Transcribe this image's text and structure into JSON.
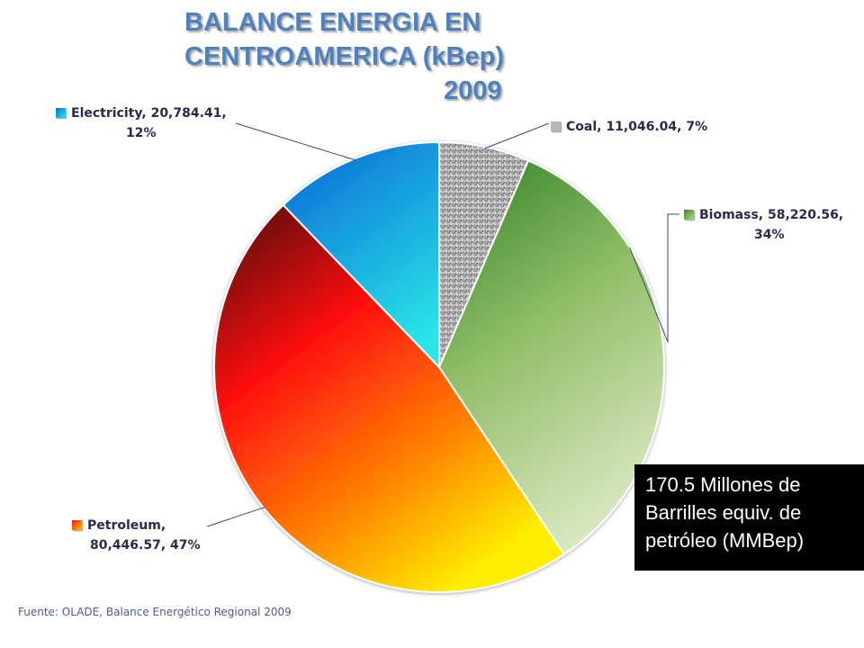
{
  "title": {
    "line1": "BALANCE ENERGIA EN",
    "line2": "CENTROAMERICA (kBep)",
    "line3": "2009"
  },
  "chart_data": {
    "type": "pie",
    "title": "BALANCE ENERGIA EN CENTROAMERICA (kBep) 2009",
    "slices": [
      {
        "name": "Coal",
        "value": 11046.04,
        "percent": 7,
        "label": "Coal, 11,046.04, 7%",
        "color": "#a6a6a6"
      },
      {
        "name": "Biomass",
        "value": 58220.56,
        "percent": 34,
        "label": "Biomass, 58,220.56, 34%",
        "color": "#77a83a"
      },
      {
        "name": "Petroleum",
        "value": 80446.57,
        "percent": 47,
        "label": "Petroleum, 80,446.57, 47%",
        "color": "#ff3a00"
      },
      {
        "name": "Electricity",
        "value": 20784.41,
        "percent": 12,
        "label": "Electricity, 20,784.41, 12%",
        "color": "#1a8fe8"
      }
    ],
    "start_angle": "12 o'clock",
    "direction": "clockwise"
  },
  "labels": {
    "electricity": {
      "line1": "Electricity, 20,784.41,",
      "line2": "12%"
    },
    "coal": {
      "line1": "Coal, 11,046.04, 7%"
    },
    "biomass": {
      "line1": "Biomass, 58,220.56,",
      "line2": "34%"
    },
    "petroleum": {
      "line1": "Petroleum,",
      "line2": "80,446.57, 47%"
    }
  },
  "note": {
    "line1": "170.5 Millones de",
    "line2": "Barrilles equiv. de",
    "line3": "petróleo (MMBep)"
  },
  "source": "Fuente:  OLADE,  Balance Energético Regional 2009"
}
